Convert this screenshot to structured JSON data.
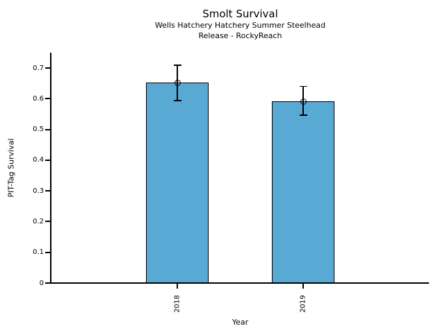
{
  "figure": {
    "background_color": "#ffffff",
    "text_color": "#000000"
  },
  "chart_data": {
    "type": "bar",
    "title": "Smolt Survival",
    "subtitle": [
      "Wells Hatchery Hatchery Summer Steelhead",
      "Release - RockyReach"
    ],
    "xlabel": "Year",
    "ylabel": "PIT-Tag Survival",
    "categories": [
      "2018",
      "2019"
    ],
    "values": [
      0.652,
      0.591
    ],
    "error_low": [
      0.594,
      0.547
    ],
    "error_high": [
      0.71,
      0.64
    ],
    "marker": "open-circle",
    "yticks": [
      0,
      0.1,
      0.2,
      0.3,
      0.4,
      0.5,
      0.6,
      0.7
    ],
    "ytick_labels": [
      "0",
      "0.1",
      "0.2",
      "0.3",
      "0.4",
      "0.5",
      "0.6",
      "0.7"
    ],
    "ylim": [
      0,
      0.75
    ],
    "xtick_rotation": 90,
    "grid": false,
    "legend": "none",
    "bar_color": "#58AAD5",
    "bar_edge_color": "#000000",
    "error_bar_color": "#000000"
  }
}
